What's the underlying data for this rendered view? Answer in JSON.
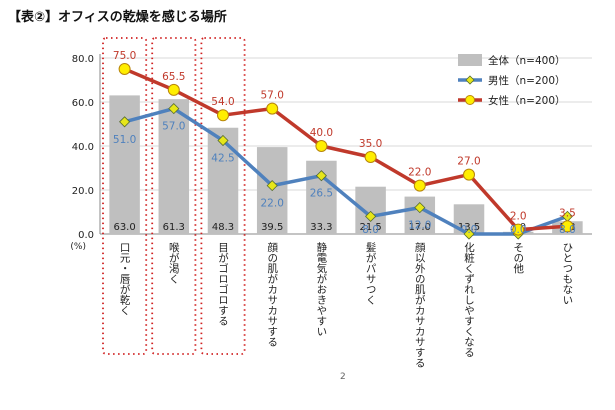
{
  "title": "【表②】オフィスの乾燥を感じる場所",
  "page_number": "2",
  "chart_data": {
    "type": "bar",
    "title": "【表②】オフィスの乾燥を感じる場所",
    "ylabel": "(%)",
    "ylim": [
      0,
      80
    ],
    "yticks": [
      "0.0",
      "20.0",
      "40.0",
      "60.0",
      "80.0"
    ],
    "grid": true,
    "legend_position": "top-right",
    "categories": [
      "口元・唇が乾く",
      "喉が渇く",
      "目がゴロゴロする",
      "顔の肌がカサカサする",
      "静電気がおきやすい",
      "髪がパサつく",
      "顔以外の肌がカサカサする",
      "化粧くずれしやすくなる",
      "その他",
      "ひとつもない"
    ],
    "highlighted_categories": [
      0,
      1,
      2
    ],
    "series": [
      {
        "name": "全体（n=400）",
        "type": "bar",
        "color": "#bfbfbf",
        "values": [
          63.0,
          61.3,
          48.3,
          39.5,
          33.3,
          21.5,
          17.0,
          13.5,
          1.0,
          5.8
        ],
        "labels": [
          "63.0",
          "61.3",
          "48.3",
          "39.5",
          "33.3",
          "21.5",
          "17.0",
          "13.5",
          "1.0",
          "5.8"
        ]
      },
      {
        "name": "男性（n=200）",
        "type": "line",
        "color": "#4f81bd",
        "marker_color": "#e6e61a",
        "values": [
          51.0,
          57.0,
          42.5,
          22.0,
          26.5,
          8.0,
          12.0,
          0.0,
          0.0,
          8.0
        ],
        "labels": [
          "51.0",
          "57.0",
          "42.5",
          "22.0",
          "26.5",
          "8.0",
          "12.0",
          "0.0",
          "0.0",
          "8.0"
        ]
      },
      {
        "name": "女性（n=200）",
        "type": "line",
        "color": "#c0392b",
        "marker_color": "#ffee00",
        "values": [
          75.0,
          65.5,
          54.0,
          57.0,
          40.0,
          35.0,
          22.0,
          27.0,
          2.0,
          3.5
        ],
        "labels": [
          "75.0",
          "65.5",
          "54.0",
          "57.0",
          "40.0",
          "35.0",
          "22.0",
          "27.0",
          "2.0",
          "3.5"
        ]
      }
    ]
  }
}
